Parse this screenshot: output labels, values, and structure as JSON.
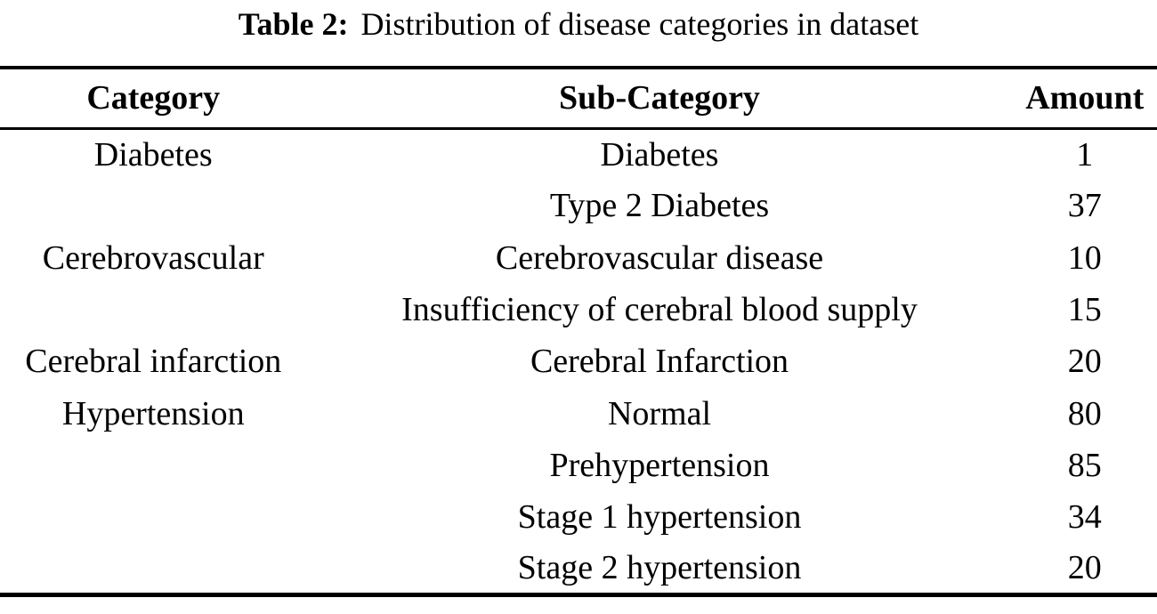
{
  "caption": {
    "label": "Table 2:",
    "text": "Distribution of disease categories in dataset"
  },
  "table": {
    "headers": [
      "Category",
      "Sub-Category",
      "Amount"
    ],
    "rows": [
      {
        "category": "Diabetes",
        "sub_category": "Diabetes",
        "amount": "1"
      },
      {
        "category": "",
        "sub_category": "Type 2 Diabetes",
        "amount": "37"
      },
      {
        "category": "Cerebrovascular",
        "sub_category": "Cerebrovascular disease",
        "amount": "10"
      },
      {
        "category": "",
        "sub_category": "Insufficiency of cerebral blood supply",
        "amount": "15"
      },
      {
        "category": "Cerebral infarction",
        "sub_category": "Cerebral Infarction",
        "amount": "20"
      },
      {
        "category": "Hypertension",
        "sub_category": "Normal",
        "amount": "80"
      },
      {
        "category": "",
        "sub_category": "Prehypertension",
        "amount": "85"
      },
      {
        "category": "",
        "sub_category": "Stage 1 hypertension",
        "amount": "34"
      },
      {
        "category": "",
        "sub_category": "Stage 2 hypertension",
        "amount": "20"
      }
    ]
  },
  "colors": {
    "text": "#000000",
    "background": "#ffffff",
    "rule": "#000000"
  }
}
